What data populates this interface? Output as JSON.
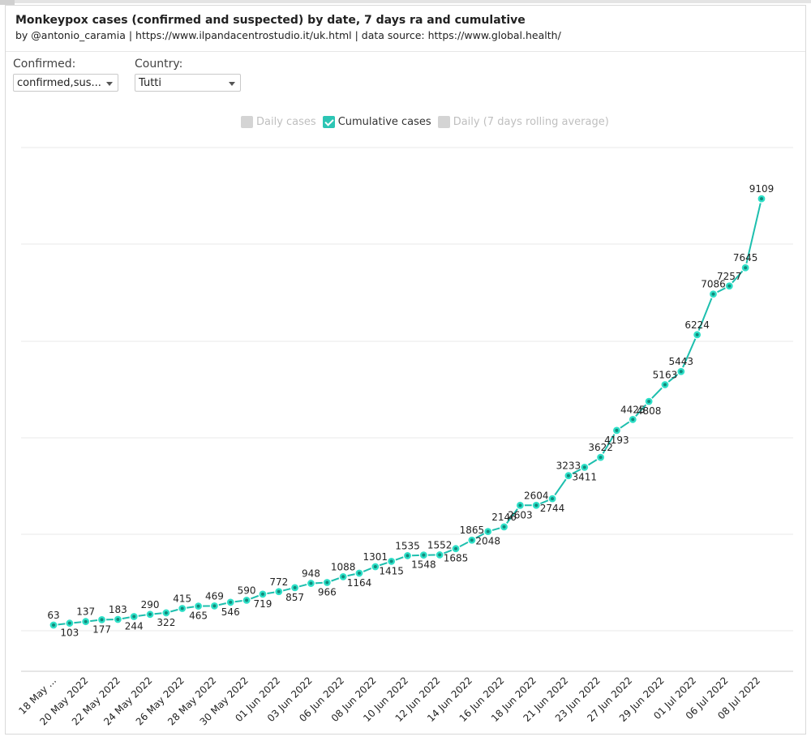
{
  "header": {
    "title": "Monkeypox cases (confirmed and suspected) by date, 7 days ra and cumulative",
    "subtitle": "by @antonio_caramia | https://www.ilpandacentrostudio.it/uk.html | data source: https://www.global.health/"
  },
  "filters": {
    "confirmed": {
      "label": "Confirmed:",
      "value": "confirmed,sus..."
    },
    "country": {
      "label": "Country:",
      "value": "Tutti"
    }
  },
  "legend": [
    {
      "label": "Daily cases",
      "checked": false
    },
    {
      "label": "Cumulative cases",
      "checked": true
    },
    {
      "label": "Daily (7 days rolling average)",
      "checked": false
    }
  ],
  "colors": {
    "series": "#1dbfae",
    "point_fill": "#2ee0c8",
    "grid": "#e8e8e8",
    "axis": "#cccccc"
  },
  "chart_data": {
    "type": "line",
    "title": "",
    "xlabel": "",
    "ylabel": "",
    "grid": true,
    "y_axis_labels_shown": false,
    "x_tick_labels": [
      "18 May ...",
      "20 May 2022",
      "22 May 2022",
      "24 May 2022",
      "26 May 2022",
      "28 May 2022",
      "30 May 2022",
      "01 Jun 2022",
      "03 Jun 2022",
      "06 Jun 2022",
      "08 Jun 2022",
      "10 Jun 2022",
      "12 Jun 2022",
      "14 Jun 2022",
      "16 Jun 2022",
      "18 Jun 2022",
      "21 Jun 2022",
      "23 Jun 2022",
      "27 Jun 2022",
      "29 Jun 2022",
      "01 Jul 2022",
      "06 Jul 2022",
      "08 Jul 2022"
    ],
    "series": [
      {
        "name": "Cumulative cases",
        "values": [
          63,
          103,
          137,
          177,
          183,
          244,
          290,
          322,
          415,
          465,
          469,
          546,
          590,
          719,
          772,
          857,
          948,
          966,
          1088,
          1164,
          1301,
          1415,
          1535,
          1548,
          1552,
          1685,
          1865,
          2048,
          2146,
          2603,
          2604,
          2744,
          3233,
          3411,
          3622,
          4193,
          4425,
          4808,
          5163,
          5443,
          6224,
          7086,
          7257,
          7645,
          9109
        ]
      }
    ]
  }
}
